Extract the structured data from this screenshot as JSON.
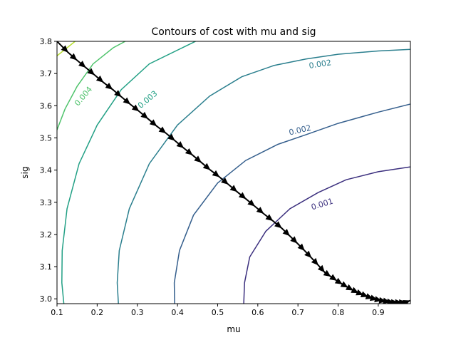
{
  "chart_data": {
    "type": "contour",
    "title": "Contours of cost with mu and sig",
    "xlabel": "mu",
    "ylabel": "sig",
    "xlim": [
      0.1,
      0.98
    ],
    "ylim": [
      2.985,
      3.8
    ],
    "xticks": [
      "0.1",
      "0.2",
      "0.3",
      "0.4",
      "0.5",
      "0.6",
      "0.7",
      "0.8",
      "0.9"
    ],
    "yticks": [
      "3.0",
      "3.1",
      "3.2",
      "3.3",
      "3.4",
      "3.5",
      "3.6",
      "3.7",
      "3.8"
    ],
    "grid": false,
    "contours": [
      {
        "label": "0.001",
        "color": "#3b2f7e",
        "points": [
          [
            0.565,
            2.985
          ],
          [
            0.567,
            3.05
          ],
          [
            0.58,
            3.13
          ],
          [
            0.62,
            3.21
          ],
          [
            0.68,
            3.28
          ],
          [
            0.75,
            3.33
          ],
          [
            0.82,
            3.37
          ],
          [
            0.9,
            3.395
          ],
          [
            0.98,
            3.41
          ]
        ]
      },
      {
        "label": "0.002",
        "color": "#355f8d",
        "points": [
          [
            0.393,
            2.985
          ],
          [
            0.392,
            3.05
          ],
          [
            0.405,
            3.15
          ],
          [
            0.44,
            3.26
          ],
          [
            0.5,
            3.36
          ],
          [
            0.57,
            3.43
          ],
          [
            0.65,
            3.48
          ],
          [
            0.72,
            3.51
          ],
          [
            0.8,
            3.545
          ],
          [
            0.9,
            3.58
          ],
          [
            0.98,
            3.605
          ]
        ]
      },
      {
        "label": "0.002",
        "color": "#2b7f8e",
        "points": [
          [
            0.253,
            2.985
          ],
          [
            0.25,
            3.05
          ],
          [
            0.255,
            3.15
          ],
          [
            0.28,
            3.28
          ],
          [
            0.33,
            3.42
          ],
          [
            0.4,
            3.54
          ],
          [
            0.48,
            3.63
          ],
          [
            0.56,
            3.69
          ],
          [
            0.64,
            3.725
          ],
          [
            0.72,
            3.745
          ],
          [
            0.8,
            3.76
          ],
          [
            0.9,
            3.77
          ],
          [
            0.98,
            3.775
          ]
        ]
      },
      {
        "label": "0.003",
        "color": "#22a085",
        "points": [
          [
            0.117,
            2.985
          ],
          [
            0.112,
            3.05
          ],
          [
            0.113,
            3.15
          ],
          [
            0.125,
            3.28
          ],
          [
            0.155,
            3.42
          ],
          [
            0.2,
            3.54
          ],
          [
            0.26,
            3.65
          ],
          [
            0.33,
            3.73
          ],
          [
            0.42,
            3.785
          ],
          [
            0.445,
            3.8
          ]
        ]
      },
      {
        "label": "0.004",
        "color": "#4ec36b",
        "points": [
          [
            0.1,
            3.525
          ],
          [
            0.12,
            3.59
          ],
          [
            0.15,
            3.66
          ],
          [
            0.19,
            3.73
          ],
          [
            0.24,
            3.78
          ],
          [
            0.27,
            3.8
          ]
        ]
      },
      {
        "label": "",
        "color": "#b5de2b",
        "points": [
          [
            0.1,
            3.755
          ],
          [
            0.13,
            3.785
          ],
          [
            0.145,
            3.8
          ]
        ]
      }
    ],
    "contour_labels": [
      {
        "text": "0.001",
        "x": 0.76,
        "y": 3.295,
        "angle": -17,
        "color": "#3b2f7e"
      },
      {
        "text": "0.002",
        "x": 0.705,
        "y": 3.525,
        "angle": -13,
        "color": "#355f8d"
      },
      {
        "text": "0.002",
        "x": 0.755,
        "y": 3.73,
        "angle": -9,
        "color": "#2b7f8e"
      },
      {
        "text": "0.003",
        "x": 0.325,
        "y": 3.62,
        "angle": -40,
        "color": "#22a085"
      },
      {
        "text": "0.004",
        "x": 0.165,
        "y": 3.63,
        "angle": -50,
        "color": "#4ec36b"
      }
    ],
    "descent_path": {
      "color": "#000000",
      "x": [
        0.1,
        0.128,
        0.15,
        0.172,
        0.194,
        0.216,
        0.239,
        0.261,
        0.283,
        0.305,
        0.327,
        0.349,
        0.372,
        0.394,
        0.416,
        0.438,
        0.46,
        0.482,
        0.505,
        0.527,
        0.549,
        0.571,
        0.593,
        0.615,
        0.638,
        0.66,
        0.68,
        0.699,
        0.717,
        0.734,
        0.751,
        0.767,
        0.782,
        0.797,
        0.811,
        0.825,
        0.838,
        0.851,
        0.863,
        0.875,
        0.887,
        0.898,
        0.909,
        0.92,
        0.93,
        0.94,
        0.95,
        0.96,
        0.97,
        0.98
      ],
      "y": [
        3.8,
        3.765,
        3.741,
        3.718,
        3.695,
        3.672,
        3.65,
        3.627,
        3.604,
        3.582,
        3.559,
        3.536,
        3.514,
        3.491,
        3.468,
        3.446,
        3.423,
        3.4,
        3.378,
        3.355,
        3.332,
        3.31,
        3.287,
        3.264,
        3.242,
        3.219,
        3.195,
        3.172,
        3.149,
        3.127,
        3.104,
        3.082,
        3.069,
        3.056,
        3.045,
        3.035,
        3.026,
        3.018,
        3.012,
        3.006,
        3.001,
        2.997,
        2.994,
        2.992,
        2.99,
        2.989,
        2.989,
        2.989,
        2.99,
        2.995
      ]
    }
  }
}
